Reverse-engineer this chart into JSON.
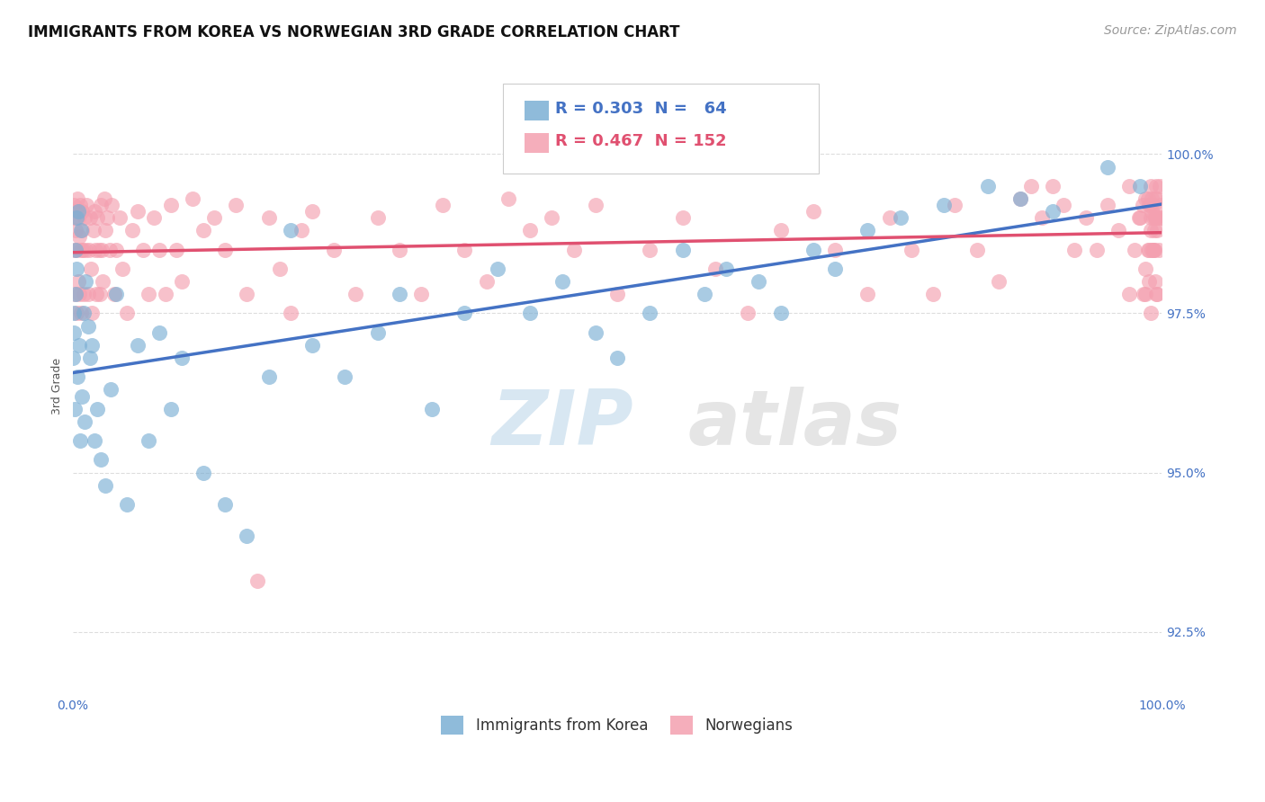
{
  "title": "IMMIGRANTS FROM KOREA VS NORWEGIAN 3RD GRADE CORRELATION CHART",
  "source_text": "Source: ZipAtlas.com",
  "ylabel": "3rd Grade",
  "xlim": [
    0.0,
    100.0
  ],
  "ylim": [
    91.5,
    101.2
  ],
  "korea_R": 0.303,
  "korea_N": 64,
  "norwegian_R": 0.467,
  "norwegian_N": 152,
  "korea_color": "#7bafd4",
  "norwegian_color": "#f4a0b0",
  "korea_trend_color": "#4472c4",
  "norwegian_trend_color": "#e05070",
  "legend_label_korea": "Immigrants from Korea",
  "legend_label_norwegian": "Norwegians",
  "watermark_zip": "ZIP",
  "watermark_atlas": "atlas",
  "background_color": "#ffffff",
  "grid_color": "#dddddd",
  "title_fontsize": 12,
  "axis_label_fontsize": 9,
  "tick_fontsize": 10,
  "source_fontsize": 10,
  "korea_x": [
    0.05,
    0.1,
    0.15,
    0.2,
    0.25,
    0.3,
    0.35,
    0.4,
    0.45,
    0.5,
    0.6,
    0.7,
    0.8,
    0.9,
    1.0,
    1.1,
    1.2,
    1.4,
    1.6,
    1.8,
    2.0,
    2.3,
    2.6,
    3.0,
    3.5,
    4.0,
    5.0,
    6.0,
    7.0,
    8.0,
    9.0,
    10.0,
    12.0,
    14.0,
    16.0,
    18.0,
    20.0,
    22.0,
    25.0,
    28.0,
    30.0,
    33.0,
    36.0,
    39.0,
    42.0,
    45.0,
    48.0,
    50.0,
    53.0,
    56.0,
    58.0,
    60.0,
    63.0,
    65.0,
    68.0,
    70.0,
    73.0,
    76.0,
    80.0,
    84.0,
    87.0,
    90.0,
    95.0,
    98.0
  ],
  "korea_y": [
    96.8,
    97.2,
    97.5,
    96.0,
    98.5,
    97.8,
    99.0,
    98.2,
    96.5,
    99.1,
    97.0,
    95.5,
    98.8,
    96.2,
    97.5,
    95.8,
    98.0,
    97.3,
    96.8,
    97.0,
    95.5,
    96.0,
    95.2,
    94.8,
    96.3,
    97.8,
    94.5,
    97.0,
    95.5,
    97.2,
    96.0,
    96.8,
    95.0,
    94.5,
    94.0,
    96.5,
    98.8,
    97.0,
    96.5,
    97.2,
    97.8,
    96.0,
    97.5,
    98.2,
    97.5,
    98.0,
    97.2,
    96.8,
    97.5,
    98.5,
    97.8,
    98.2,
    98.0,
    97.5,
    98.5,
    98.2,
    98.8,
    99.0,
    99.2,
    99.5,
    99.3,
    99.1,
    99.8,
    99.5
  ],
  "norw_x": [
    0.05,
    0.1,
    0.15,
    0.2,
    0.25,
    0.3,
    0.35,
    0.4,
    0.45,
    0.5,
    0.55,
    0.6,
    0.65,
    0.7,
    0.75,
    0.8,
    0.85,
    0.9,
    0.95,
    1.0,
    1.1,
    1.2,
    1.3,
    1.4,
    1.5,
    1.6,
    1.7,
    1.8,
    1.9,
    2.0,
    2.1,
    2.2,
    2.3,
    2.4,
    2.5,
    2.6,
    2.7,
    2.8,
    2.9,
    3.0,
    3.2,
    3.4,
    3.6,
    3.8,
    4.0,
    4.3,
    4.6,
    5.0,
    5.5,
    6.0,
    6.5,
    7.0,
    7.5,
    8.0,
    8.5,
    9.0,
    9.5,
    10.0,
    11.0,
    12.0,
    13.0,
    14.0,
    15.0,
    16.0,
    17.0,
    18.0,
    19.0,
    20.0,
    21.0,
    22.0,
    24.0,
    26.0,
    28.0,
    30.0,
    32.0,
    34.0,
    36.0,
    38.0,
    40.0,
    42.0,
    44.0,
    46.0,
    48.0,
    50.0,
    53.0,
    56.0,
    59.0,
    62.0,
    65.0,
    68.0,
    70.0,
    73.0,
    75.0,
    77.0,
    79.0,
    81.0,
    83.0,
    85.0,
    87.0,
    88.0,
    89.0,
    90.0,
    91.0,
    92.0,
    93.0,
    94.0,
    95.0,
    96.0,
    97.0,
    98.0,
    98.5,
    99.0,
    99.2,
    99.4,
    99.5,
    99.6,
    99.7,
    99.8,
    99.9,
    100.0,
    99.1,
    98.8,
    98.3,
    97.9,
    97.5,
    97.0,
    98.2,
    99.1,
    99.4,
    98.7,
    99.0,
    99.5,
    99.3,
    98.8,
    99.6,
    99.2,
    99.4,
    98.5,
    99.0,
    99.3,
    99.1,
    98.7,
    99.5,
    99.2,
    99.7,
    98.5,
    99.0,
    99.2,
    98.8,
    99.4,
    99.6,
    99.0
  ],
  "norw_y": [
    99.0,
    98.5,
    99.2,
    97.8,
    98.8,
    99.1,
    98.5,
    97.5,
    99.3,
    98.0,
    99.0,
    98.7,
    97.8,
    99.2,
    98.5,
    97.5,
    98.8,
    99.1,
    98.5,
    97.8,
    99.0,
    98.5,
    99.2,
    97.8,
    98.5,
    99.0,
    98.2,
    97.5,
    98.8,
    99.1,
    98.5,
    97.8,
    99.0,
    98.5,
    97.8,
    99.2,
    98.5,
    98.0,
    99.3,
    98.8,
    99.0,
    98.5,
    99.2,
    97.8,
    98.5,
    99.0,
    98.2,
    97.5,
    98.8,
    99.1,
    98.5,
    97.8,
    99.0,
    98.5,
    97.8,
    99.2,
    98.5,
    98.0,
    99.3,
    98.8,
    99.0,
    98.5,
    99.2,
    97.8,
    93.3,
    99.0,
    98.2,
    97.5,
    98.8,
    99.1,
    98.5,
    97.8,
    99.0,
    98.5,
    97.8,
    99.2,
    98.5,
    98.0,
    99.3,
    98.8,
    99.0,
    98.5,
    99.2,
    97.8,
    98.5,
    99.0,
    98.2,
    97.5,
    98.8,
    99.1,
    98.5,
    97.8,
    99.0,
    98.5,
    97.8,
    99.2,
    98.5,
    98.0,
    99.3,
    99.5,
    99.0,
    99.5,
    99.2,
    98.5,
    99.0,
    98.5,
    99.2,
    98.8,
    99.5,
    99.0,
    99.3,
    99.5,
    99.2,
    99.0,
    99.5,
    99.3,
    99.0,
    99.5,
    99.2,
    99.0,
    99.3,
    98.5,
    97.8,
    99.0,
    98.5,
    97.8,
    99.2,
    98.5,
    98.0,
    99.3,
    98.8,
    99.0,
    98.5,
    99.2,
    97.8,
    98.5,
    99.0,
    98.2,
    97.5,
    98.8,
    99.1,
    98.5,
    97.8,
    99.0,
    98.5,
    97.8,
    99.2,
    98.5,
    98.0,
    99.3,
    98.8,
    99.0
  ]
}
